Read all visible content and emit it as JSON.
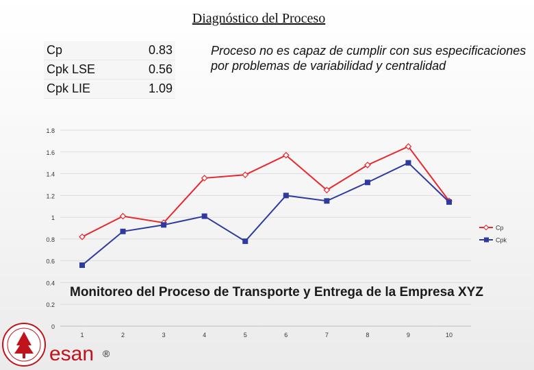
{
  "header": {
    "title": "Diagnóstico del Proceso"
  },
  "metrics": [
    {
      "name": "Cp",
      "value": "0.83"
    },
    {
      "name": "Cpk LSE",
      "value": "0.56"
    },
    {
      "name": "Cpk LIE",
      "value": "1.09"
    }
  ],
  "diagnosis": "Proceso no es capaz de cumplir con sus especificaciones por problemas de variabilidad y centralidad",
  "chart_data": {
    "type": "line",
    "title": "Monitoreo del Proceso de Transporte y Entrega de la Empresa XYZ",
    "xlabel": "",
    "ylabel": "",
    "x": [
      1,
      2,
      3,
      4,
      5,
      6,
      7,
      8,
      9,
      10
    ],
    "ylim": [
      0,
      1.8
    ],
    "yticks": [
      "0",
      "0.2",
      "0.4",
      "0.6",
      "0.8",
      "1",
      "1.2",
      "1.4",
      "1.6",
      "1.8"
    ],
    "grid": true,
    "legend_position": "right",
    "series": [
      {
        "name": "Cp",
        "color": "#e8262b",
        "marker": "diamond-open",
        "values": [
          0.82,
          1.01,
          0.95,
          1.36,
          1.39,
          1.57,
          1.25,
          1.48,
          1.65,
          1.15
        ]
      },
      {
        "name": "Cpk",
        "color": "#2e3a9e",
        "marker": "square",
        "values": [
          0.56,
          0.87,
          0.93,
          1.01,
          0.78,
          1.2,
          1.15,
          1.32,
          1.5,
          1.14
        ]
      }
    ]
  },
  "logo": {
    "text": "esan",
    "mark": "®",
    "seal_icon": "university-seal-tree-icon",
    "color": "#c0131b"
  }
}
